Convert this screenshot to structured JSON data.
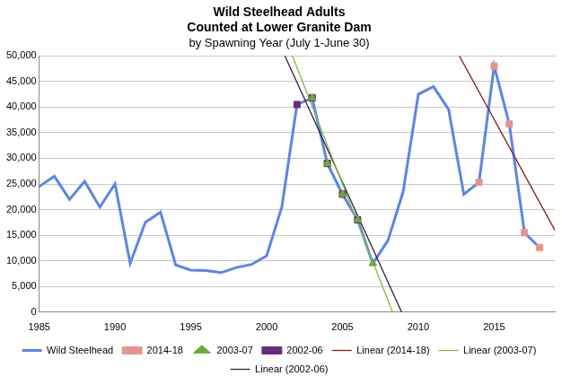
{
  "chart_data": {
    "type": "line",
    "title": [
      "Wild Steelhead Adults",
      "Counted at Lower Granite Dam"
    ],
    "subtitle": "by Spawning Year (July 1-June 30)",
    "xlim": [
      1985,
      2019
    ],
    "xticks": [
      1985,
      1990,
      1995,
      2000,
      2005,
      2010,
      2015
    ],
    "ylim": [
      0,
      50000
    ],
    "yticks": [
      0,
      {
        "value": 5000,
        "label": "5,000"
      },
      {
        "value": 10000,
        "label": "10,000"
      },
      {
        "value": 15000,
        "label": "15,000"
      },
      {
        "value": 20000,
        "label": "20,000"
      },
      {
        "value": 25000,
        "label": "25,000"
      },
      {
        "value": 30000,
        "label": "30,000"
      },
      {
        "value": 35000,
        "label": "35,000"
      },
      {
        "value": 40000,
        "label": "40,000"
      },
      {
        "value": 45000,
        "label": "45,000"
      },
      {
        "value": 50000,
        "label": "50,000"
      }
    ],
    "grid": "y",
    "legend": "bottom",
    "series": [
      {
        "name": "Wild Steelhead",
        "color": "#5b86e5",
        "marker": "none",
        "line_style": "solid",
        "x": [
          1985,
          1986,
          1987,
          1988,
          1989,
          1990,
          1991,
          1992,
          1993,
          1994,
          1995,
          1996,
          1997,
          1998,
          1999,
          2000,
          2001,
          2002,
          2003,
          2004,
          2005,
          2006,
          2007,
          2008,
          2009,
          2010,
          2011,
          2012,
          2013,
          2014,
          2015,
          2016,
          2017,
          2018
        ],
        "values": [
          24500,
          26500,
          22000,
          25500,
          20500,
          25000,
          9500,
          17500,
          19500,
          9200,
          8200,
          8100,
          7700,
          8700,
          9300,
          11000,
          20500,
          40500,
          41800,
          29000,
          23000,
          18000,
          9500,
          14000,
          23500,
          42500,
          44000,
          39500,
          23000,
          25300,
          48000,
          36700,
          15500,
          12600
        ]
      },
      {
        "name": "2014-18",
        "color": "#e8948c",
        "marker": "square",
        "line_style": "none",
        "x": [
          2014,
          2015,
          2016,
          2017,
          2018
        ],
        "values": [
          25300,
          48000,
          36700,
          15500,
          12600
        ]
      },
      {
        "name": "2003-07",
        "color": "#6aab3a",
        "marker": "triangle",
        "line_style": "none",
        "x": [
          2003,
          2004,
          2005,
          2006,
          2007
        ],
        "values": [
          41800,
          29000,
          23000,
          18000,
          9500
        ]
      },
      {
        "name": "2002-06",
        "color": "#6a2c7a",
        "marker": "square",
        "line_style": "none",
        "x": [
          2002,
          2003,
          2004,
          2005,
          2006
        ],
        "values": [
          40500,
          41800,
          29000,
          23000,
          18000
        ]
      },
      {
        "name": "Linear (2014-18)",
        "color": "#8b1a1a",
        "marker": "none",
        "line_style": "solid",
        "x": [
          2012.7,
          2019
        ],
        "values": [
          50000,
          16000
        ]
      },
      {
        "name": "Linear (2003-07)",
        "color": "#7fbf3f",
        "marker": "none",
        "line_style": "solid",
        "x": [
          2001.7,
          2008.3
        ],
        "values": [
          50000,
          0
        ]
      },
      {
        "name": "Linear (2002-06)",
        "color": "#3d1a4f",
        "marker": "none",
        "line_style": "solid",
        "x": [
          2001.2,
          2008.9
        ],
        "values": [
          50000,
          0
        ]
      }
    ]
  }
}
